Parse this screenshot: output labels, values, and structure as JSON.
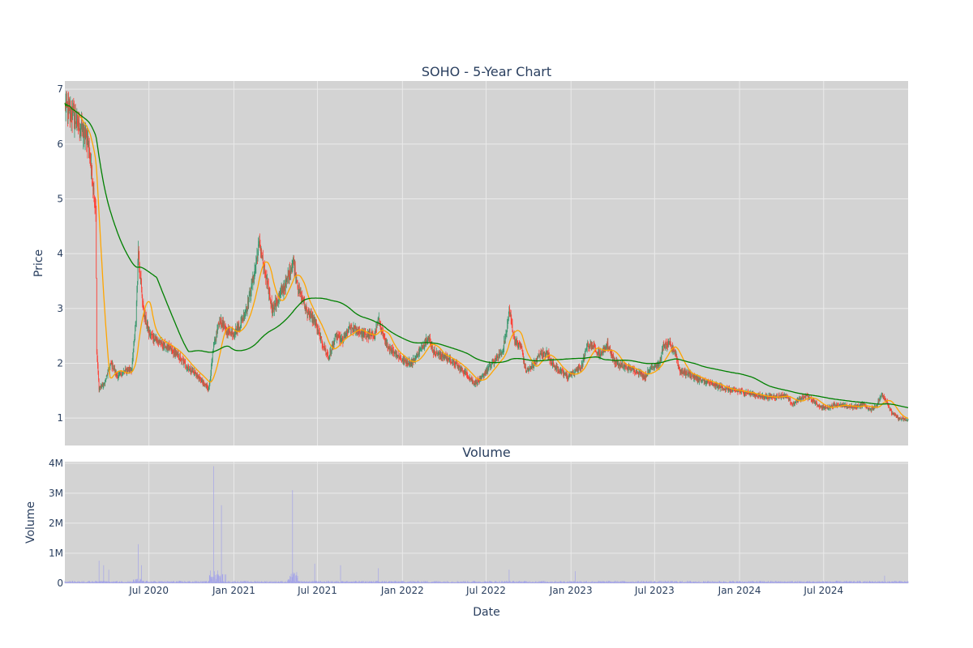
{
  "chart_data": [
    {
      "type": "candlestick",
      "title": "SOHO - 5-Year Chart",
      "ylabel": "Price",
      "ylim": [
        0.5,
        7.15
      ],
      "yticks": [
        "1",
        "2",
        "3",
        "4",
        "5",
        "6",
        "7"
      ],
      "x_range": [
        "2020-01-01",
        "2024-12-31"
      ],
      "grid": true,
      "legend": "none",
      "colors": {
        "plot_bg": "#d3d3d3",
        "grid": "#eaeaea",
        "increasing": "#3d9970",
        "decreasing": "#ff4136",
        "ma_short": "#ffa500",
        "ma_long": "#008000"
      },
      "price_path": [
        [
          "2020-01-01",
          6.7
        ],
        [
          "2020-01-15",
          6.55
        ],
        [
          "2020-02-01",
          6.35
        ],
        [
          "2020-02-20",
          6.05
        ],
        [
          "2020-03-01",
          5.3
        ],
        [
          "2020-03-08",
          4.8
        ],
        [
          "2020-03-10",
          2.2
        ],
        [
          "2020-03-15",
          1.55
        ],
        [
          "2020-03-25",
          1.6
        ],
        [
          "2020-04-10",
          2.0
        ],
        [
          "2020-04-25",
          1.75
        ],
        [
          "2020-05-10",
          1.85
        ],
        [
          "2020-05-25",
          1.9
        ],
        [
          "2020-06-03",
          2.8
        ],
        [
          "2020-06-08",
          4.1
        ],
        [
          "2020-06-12",
          3.6
        ],
        [
          "2020-06-20",
          2.9
        ],
        [
          "2020-07-01",
          2.55
        ],
        [
          "2020-07-20",
          2.4
        ],
        [
          "2020-08-10",
          2.3
        ],
        [
          "2020-09-01",
          2.15
        ],
        [
          "2020-09-20",
          1.95
        ],
        [
          "2020-10-10",
          1.8
        ],
        [
          "2020-10-25",
          1.65
        ],
        [
          "2020-11-08",
          1.55
        ],
        [
          "2020-11-18",
          2.3
        ],
        [
          "2020-12-01",
          2.8
        ],
        [
          "2020-12-15",
          2.6
        ],
        [
          "2021-01-01",
          2.55
        ],
        [
          "2021-01-15",
          2.7
        ],
        [
          "2021-02-01",
          3.1
        ],
        [
          "2021-02-15",
          3.7
        ],
        [
          "2021-02-25",
          4.2
        ],
        [
          "2021-03-10",
          3.6
        ],
        [
          "2021-03-25",
          3.0
        ],
        [
          "2021-04-10",
          3.2
        ],
        [
          "2021-04-25",
          3.5
        ],
        [
          "2021-05-10",
          3.85
        ],
        [
          "2021-05-20",
          3.4
        ],
        [
          "2021-06-05",
          3.0
        ],
        [
          "2021-06-25",
          2.75
        ],
        [
          "2021-07-10",
          2.4
        ],
        [
          "2021-07-25",
          2.1
        ],
        [
          "2021-08-10",
          2.5
        ],
        [
          "2021-08-25",
          2.4
        ],
        [
          "2021-09-10",
          2.65
        ],
        [
          "2021-09-25",
          2.6
        ],
        [
          "2021-10-15",
          2.5
        ],
        [
          "2021-11-01",
          2.5
        ],
        [
          "2021-11-10",
          2.8
        ],
        [
          "2021-11-25",
          2.35
        ],
        [
          "2021-12-15",
          2.2
        ],
        [
          "2022-01-01",
          2.05
        ],
        [
          "2022-01-20",
          2.0
        ],
        [
          "2022-02-10",
          2.25
        ],
        [
          "2022-02-25",
          2.5
        ],
        [
          "2022-03-10",
          2.2
        ],
        [
          "2022-03-25",
          2.15
        ],
        [
          "2022-04-15",
          2.05
        ],
        [
          "2022-05-01",
          1.95
        ],
        [
          "2022-05-20",
          1.8
        ],
        [
          "2022-06-05",
          1.65
        ],
        [
          "2022-06-20",
          1.7
        ],
        [
          "2022-07-05",
          1.9
        ],
        [
          "2022-07-20",
          2.05
        ],
        [
          "2022-08-05",
          2.2
        ],
        [
          "2022-08-15",
          2.6
        ],
        [
          "2022-08-20",
          3.0
        ],
        [
          "2022-09-01",
          2.4
        ],
        [
          "2022-09-15",
          2.3
        ],
        [
          "2022-09-25",
          1.85
        ],
        [
          "2022-10-10",
          1.95
        ],
        [
          "2022-10-25",
          2.15
        ],
        [
          "2022-11-10",
          2.2
        ],
        [
          "2022-11-25",
          1.95
        ],
        [
          "2022-12-10",
          1.85
        ],
        [
          "2022-12-25",
          1.75
        ],
        [
          "2023-01-10",
          1.85
        ],
        [
          "2023-01-25",
          1.95
        ],
        [
          "2023-02-05",
          2.35
        ],
        [
          "2023-02-20",
          2.3
        ],
        [
          "2023-03-05",
          2.15
        ],
        [
          "2023-03-20",
          2.35
        ],
        [
          "2023-04-05",
          2.05
        ],
        [
          "2023-04-20",
          1.95
        ],
        [
          "2023-05-10",
          1.9
        ],
        [
          "2023-05-25",
          1.85
        ],
        [
          "2023-06-10",
          1.75
        ],
        [
          "2023-06-25",
          1.95
        ],
        [
          "2023-07-10",
          1.95
        ],
        [
          "2023-07-20",
          2.3
        ],
        [
          "2023-08-01",
          2.35
        ],
        [
          "2023-08-15",
          2.2
        ],
        [
          "2023-08-25",
          1.85
        ],
        [
          "2023-09-15",
          1.8
        ],
        [
          "2023-10-05",
          1.7
        ],
        [
          "2023-10-25",
          1.65
        ],
        [
          "2023-11-10",
          1.6
        ],
        [
          "2023-11-25",
          1.55
        ],
        [
          "2023-12-15",
          1.5
        ],
        [
          "2024-01-05",
          1.48
        ],
        [
          "2024-01-25",
          1.45
        ],
        [
          "2024-02-15",
          1.4
        ],
        [
          "2024-03-10",
          1.38
        ],
        [
          "2024-03-25",
          1.4
        ],
        [
          "2024-04-10",
          1.42
        ],
        [
          "2024-04-25",
          1.25
        ],
        [
          "2024-05-10",
          1.35
        ],
        [
          "2024-05-25",
          1.4
        ],
        [
          "2024-06-10",
          1.3
        ],
        [
          "2024-06-25",
          1.2
        ],
        [
          "2024-07-10",
          1.18
        ],
        [
          "2024-07-25",
          1.25
        ],
        [
          "2024-08-15",
          1.22
        ],
        [
          "2024-09-05",
          1.2
        ],
        [
          "2024-09-25",
          1.25
        ],
        [
          "2024-10-10",
          1.15
        ],
        [
          "2024-10-25",
          1.25
        ],
        [
          "2024-11-05",
          1.45
        ],
        [
          "2024-11-15",
          1.3
        ],
        [
          "2024-11-25",
          1.1
        ],
        [
          "2024-12-10",
          1.0
        ],
        [
          "2024-12-31",
          0.95
        ]
      ]
    },
    {
      "type": "bar",
      "title": "Volume",
      "ylabel": "Volume",
      "xlabel": "Date",
      "ylim": [
        0,
        4050000
      ],
      "yticks": [
        {
          "value": 0,
          "label": "0"
        },
        {
          "value": 1000000,
          "label": "1M"
        },
        {
          "value": 2000000,
          "label": "2M"
        },
        {
          "value": 3000000,
          "label": "3M"
        },
        {
          "value": 4000000,
          "label": "4M"
        }
      ],
      "xticks": [
        {
          "date": "2020-07-01",
          "label": "Jul 2020"
        },
        {
          "date": "2021-01-01",
          "label": "Jan 2021"
        },
        {
          "date": "2021-07-01",
          "label": "Jul 2021"
        },
        {
          "date": "2022-01-01",
          "label": "Jan 2022"
        },
        {
          "date": "2022-07-01",
          "label": "Jul 2022"
        },
        {
          "date": "2023-01-01",
          "label": "Jan 2023"
        },
        {
          "date": "2023-07-01",
          "label": "Jul 2023"
        },
        {
          "date": "2024-01-01",
          "label": "Jan 2024"
        },
        {
          "date": "2024-07-01",
          "label": "Jul 2024"
        }
      ],
      "colors": {
        "bar": "#a4a4e8"
      },
      "spikes": [
        [
          "2020-03-15",
          750000
        ],
        [
          "2020-03-25",
          600000
        ],
        [
          "2020-04-05",
          450000
        ],
        [
          "2020-06-08",
          1300000
        ],
        [
          "2020-06-15",
          600000
        ],
        [
          "2020-11-18",
          3900000
        ],
        [
          "2020-12-05",
          2600000
        ],
        [
          "2021-05-08",
          3100000
        ],
        [
          "2021-06-25",
          650000
        ],
        [
          "2021-08-20",
          600000
        ],
        [
          "2021-11-10",
          500000
        ],
        [
          "2022-08-20",
          450000
        ],
        [
          "2023-01-10",
          400000
        ],
        [
          "2024-11-10",
          250000
        ]
      ]
    }
  ]
}
